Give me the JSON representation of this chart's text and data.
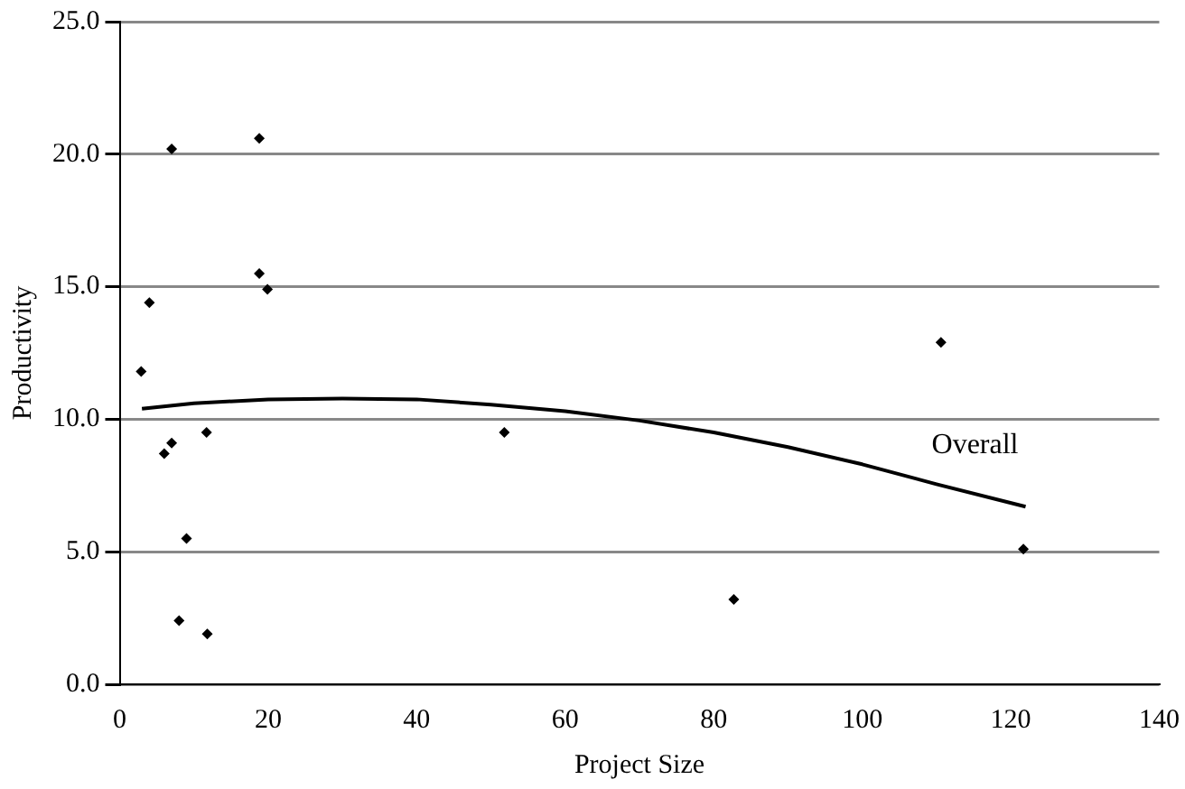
{
  "chart_data": {
    "type": "scatter",
    "xlabel": "Project Size",
    "ylabel": "Productivity",
    "xlim": [
      0,
      140
    ],
    "xticks": [
      0,
      20,
      40,
      60,
      80,
      100,
      120,
      140
    ],
    "ylim": [
      0,
      25
    ],
    "yticks": [
      {
        "value": 0,
        "label": "0.0"
      },
      {
        "value": 5,
        "label": "5.0"
      },
      {
        "value": 10,
        "label": "10.0"
      },
      {
        "value": 15,
        "label": "15.0"
      },
      {
        "value": 20,
        "label": "20.0"
      },
      {
        "value": 25,
        "label": "25.0"
      }
    ],
    "grid": "y",
    "legend": false,
    "marker": "diamond",
    "series": [
      {
        "color": "#000000",
        "x": [
          7,
          18.8,
          18.8,
          19.9,
          4,
          2.9,
          11.7,
          7,
          6,
          9,
          8,
          11.8,
          51.8,
          82.7,
          110.6,
          121.7
        ],
        "values": [
          20.2,
          20.6,
          15.5,
          14.9,
          14.4,
          11.8,
          9.5,
          9.1,
          8.7,
          5.5,
          2.4,
          1.9,
          9.5,
          3.2,
          12.9,
          5.1
        ]
      },
      {
        "type": "line",
        "name": "Overall",
        "color": "#000000",
        "marker": "none",
        "x": [
          3,
          10,
          20,
          30,
          40,
          50,
          60,
          70,
          80,
          90,
          100,
          110,
          122
        ],
        "values": [
          10.4,
          10.6,
          10.75,
          10.78,
          10.75,
          10.55,
          10.3,
          9.95,
          9.5,
          8.95,
          8.3,
          7.55,
          6.7
        ]
      }
    ]
  }
}
